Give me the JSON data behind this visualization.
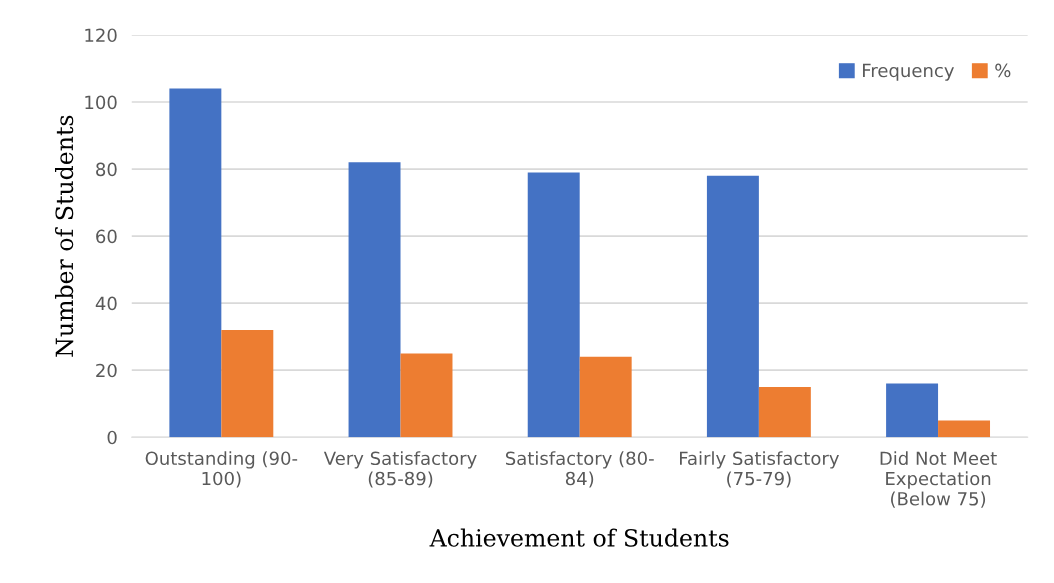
{
  "chart_data": {
    "type": "bar",
    "xlabel": "Achievement of Students",
    "ylabel": "Number of Students",
    "categories": [
      "Outstanding (90-\n100)",
      "Very Satisfactory\n(85-89)",
      "Satisfactory (80-\n84)",
      "Fairly Satisfactory\n(75-79)",
      "Did Not Meet\nExpectation\n(Below 75)"
    ],
    "series": [
      {
        "name": "Frequency",
        "color": "#4472c4",
        "values": [
          104,
          82,
          79,
          78,
          16
        ]
      },
      {
        "name": "%",
        "color": "#ed7d31",
        "values": [
          32,
          25,
          24,
          15,
          5
        ]
      }
    ],
    "ylim": [
      0,
      120
    ],
    "yticks": [
      0,
      20,
      40,
      60,
      80,
      100,
      120
    ],
    "grid": "y",
    "legend": "top right"
  }
}
